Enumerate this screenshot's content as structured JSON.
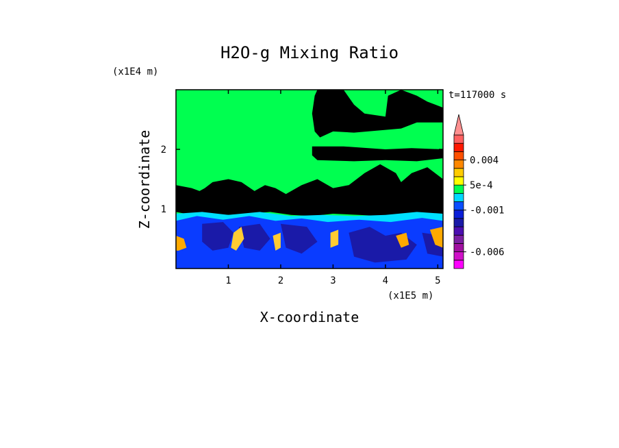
{
  "chart_data": {
    "type": "heatmap",
    "title": "H2O-g Mixing Ratio",
    "xlabel": "X-coordinate",
    "ylabel": "Z-coordinate",
    "x_unit": "(x1E5 m)",
    "y_unit": "(x1E4 m)",
    "time_label": "t=117000 s",
    "xlim": [
      0.0,
      5.1
    ],
    "ylim": [
      0.0,
      3.0
    ],
    "x_ticks": [
      1,
      2,
      3,
      4,
      5
    ],
    "y_ticks": [
      1,
      2
    ],
    "x_tick_labels": [
      "1",
      "2",
      "3",
      "4",
      "5"
    ],
    "y_tick_labels": [
      "1",
      "2"
    ],
    "grid": false,
    "colorbar": {
      "position": "right",
      "extend": "max",
      "levels_bottom_to_top": [
        {
          "value": -0.008,
          "color": "#ff00ff"
        },
        {
          "value": -0.007,
          "color": "#d010c8"
        },
        {
          "value": -0.006,
          "color": "#a010a0"
        },
        {
          "value": -0.005,
          "color": "#7b1fa2"
        },
        {
          "value": -0.004,
          "color": "#4b0fb0"
        },
        {
          "value": -0.003,
          "color": "#1a1aa8"
        },
        {
          "value": -0.002,
          "color": "#0a1ed8"
        },
        {
          "value": -0.001,
          "color": "#0a4eff"
        },
        {
          "value": 0.0,
          "color": "#00d8ff"
        },
        {
          "value": 0.0002,
          "color": "#00ff50"
        },
        {
          "value": 0.0005,
          "color": "#ffff00"
        },
        {
          "value": 0.001,
          "color": "#ffcc00"
        },
        {
          "value": 0.002,
          "color": "#ff8800"
        },
        {
          "value": 0.004,
          "color": "#ff5000"
        },
        {
          "value": 0.006,
          "color": "#ff1800"
        },
        {
          "value": 0.008,
          "color": "#ff6060"
        },
        {
          "value": 0.01,
          "color": "#ff9090"
        }
      ],
      "labeled_values": [
        {
          "text": "0.004",
          "value": 0.004
        },
        {
          "text": "5e-4",
          "value": 0.0005
        },
        {
          "text": "-0.001",
          "value": -0.001
        },
        {
          "text": "-0.006",
          "value": -0.006
        }
      ]
    },
    "field_colors": {
      "background": "#00ff50",
      "moist_yellow": "#ffff00",
      "cyan": "#00e0ff",
      "blue": "#0a3cff",
      "dark_blue": "#1a1aa8",
      "orange": "#ffaa00",
      "light_orange": "#ffcc33"
    },
    "regions": [
      {
        "kind": "yellow",
        "desc": "upper-right moist plume",
        "pts": [
          [
            2.7,
            3.0
          ],
          [
            3.2,
            3.0
          ],
          [
            3.4,
            2.75
          ],
          [
            3.6,
            2.6
          ],
          [
            4.0,
            2.55
          ],
          [
            4.05,
            2.9
          ],
          [
            4.3,
            3.0
          ],
          [
            4.6,
            2.9
          ],
          [
            4.8,
            2.8
          ],
          [
            5.1,
            2.7
          ],
          [
            5.1,
            2.45
          ],
          [
            4.6,
            2.45
          ],
          [
            4.3,
            2.35
          ],
          [
            3.4,
            2.28
          ],
          [
            3.0,
            2.3
          ],
          [
            2.75,
            2.2
          ],
          [
            2.65,
            2.3
          ],
          [
            2.6,
            2.6
          ],
          [
            2.65,
            2.9
          ]
        ]
      },
      {
        "kind": "yellow",
        "desc": "mid layer band",
        "pts": [
          [
            2.6,
            2.05
          ],
          [
            3.2,
            2.05
          ],
          [
            4.0,
            2.0
          ],
          [
            4.5,
            2.02
          ],
          [
            5.1,
            2.0
          ],
          [
            5.1,
            1.85
          ],
          [
            4.6,
            1.8
          ],
          [
            4.0,
            1.82
          ],
          [
            3.4,
            1.8
          ],
          [
            2.7,
            1.82
          ],
          [
            2.6,
            1.9
          ]
        ]
      },
      {
        "kind": "yellow",
        "desc": "lower cloud layer",
        "pts": [
          [
            0.0,
            1.4
          ],
          [
            0.3,
            1.35
          ],
          [
            0.45,
            1.3
          ],
          [
            0.55,
            1.35
          ],
          [
            0.7,
            1.45
          ],
          [
            1.0,
            1.5
          ],
          [
            1.25,
            1.45
          ],
          [
            1.5,
            1.3
          ],
          [
            1.7,
            1.4
          ],
          [
            1.9,
            1.35
          ],
          [
            2.1,
            1.25
          ],
          [
            2.4,
            1.4
          ],
          [
            2.7,
            1.5
          ],
          [
            2.8,
            1.45
          ],
          [
            3.0,
            1.35
          ],
          [
            3.3,
            1.4
          ],
          [
            3.6,
            1.6
          ],
          [
            3.9,
            1.75
          ],
          [
            4.2,
            1.6
          ],
          [
            4.3,
            1.45
          ],
          [
            4.5,
            1.6
          ],
          [
            4.8,
            1.7
          ],
          [
            5.1,
            1.5
          ],
          [
            5.1,
            0.9
          ],
          [
            4.7,
            0.92
          ],
          [
            4.3,
            0.9
          ],
          [
            3.9,
            0.88
          ],
          [
            3.5,
            0.9
          ],
          [
            3.0,
            0.92
          ],
          [
            2.6,
            0.88
          ],
          [
            2.2,
            0.9
          ],
          [
            1.8,
            0.95
          ],
          [
            1.4,
            0.92
          ],
          [
            1.0,
            0.9
          ],
          [
            0.6,
            0.92
          ],
          [
            0.3,
            0.9
          ],
          [
            0.0,
            0.95
          ]
        ]
      },
      {
        "kind": "cyan",
        "desc": "boundary layer top",
        "pts": [
          [
            0.0,
            0.92
          ],
          [
            0.5,
            0.95
          ],
          [
            1.0,
            0.9
          ],
          [
            1.6,
            0.95
          ],
          [
            2.2,
            0.88
          ],
          [
            2.8,
            0.9
          ],
          [
            3.4,
            0.88
          ],
          [
            4.0,
            0.9
          ],
          [
            4.6,
            0.95
          ],
          [
            5.1,
            0.92
          ],
          [
            5.1,
            0.6
          ],
          [
            0.0,
            0.6
          ]
        ]
      },
      {
        "kind": "blue",
        "desc": "boundary layer",
        "pts": [
          [
            0.0,
            0.8
          ],
          [
            0.4,
            0.88
          ],
          [
            0.9,
            0.82
          ],
          [
            1.4,
            0.88
          ],
          [
            1.9,
            0.8
          ],
          [
            2.4,
            0.84
          ],
          [
            2.9,
            0.78
          ],
          [
            3.5,
            0.82
          ],
          [
            4.1,
            0.78
          ],
          [
            4.7,
            0.85
          ],
          [
            5.1,
            0.8
          ],
          [
            5.1,
            0.0
          ],
          [
            0.0,
            0.0
          ]
        ]
      },
      {
        "kind": "dark_blue",
        "desc": "dark cell 1",
        "pts": [
          [
            0.5,
            0.75
          ],
          [
            0.9,
            0.78
          ],
          [
            1.1,
            0.6
          ],
          [
            1.0,
            0.35
          ],
          [
            0.7,
            0.3
          ],
          [
            0.5,
            0.45
          ]
        ]
      },
      {
        "kind": "dark_blue",
        "desc": "dark cell 2",
        "pts": [
          [
            1.2,
            0.7
          ],
          [
            1.6,
            0.75
          ],
          [
            1.8,
            0.5
          ],
          [
            1.6,
            0.3
          ],
          [
            1.3,
            0.35
          ]
        ]
      },
      {
        "kind": "dark_blue",
        "desc": "dark cell 3",
        "pts": [
          [
            2.0,
            0.75
          ],
          [
            2.5,
            0.7
          ],
          [
            2.7,
            0.45
          ],
          [
            2.4,
            0.25
          ],
          [
            2.1,
            0.35
          ]
        ]
      },
      {
        "kind": "dark_blue",
        "desc": "dark cell 4",
        "pts": [
          [
            3.3,
            0.6
          ],
          [
            3.7,
            0.7
          ],
          [
            4.0,
            0.55
          ],
          [
            4.3,
            0.6
          ],
          [
            4.6,
            0.4
          ],
          [
            4.4,
            0.15
          ],
          [
            3.8,
            0.1
          ],
          [
            3.4,
            0.2
          ]
        ]
      },
      {
        "kind": "dark_blue",
        "desc": "dark cell 5",
        "pts": [
          [
            4.7,
            0.6
          ],
          [
            5.1,
            0.55
          ],
          [
            5.1,
            0.2
          ],
          [
            4.8,
            0.25
          ]
        ]
      },
      {
        "kind": "orange",
        "desc": "left edge anomaly",
        "pts": [
          [
            0.0,
            0.55
          ],
          [
            0.15,
            0.5
          ],
          [
            0.2,
            0.35
          ],
          [
            0.05,
            0.3
          ],
          [
            0.0,
            0.3
          ]
        ]
      },
      {
        "kind": "orange",
        "desc": "right edge anomaly",
        "pts": [
          [
            4.85,
            0.65
          ],
          [
            5.1,
            0.7
          ],
          [
            5.1,
            0.35
          ],
          [
            4.95,
            0.4
          ]
        ]
      },
      {
        "kind": "orange",
        "desc": "anomaly near x=4.3",
        "pts": [
          [
            4.2,
            0.55
          ],
          [
            4.4,
            0.6
          ],
          [
            4.45,
            0.4
          ],
          [
            4.3,
            0.35
          ]
        ]
      },
      {
        "kind": "light_orange",
        "desc": "updraft streak 1",
        "pts": [
          [
            1.1,
            0.6
          ],
          [
            1.25,
            0.7
          ],
          [
            1.3,
            0.5
          ],
          [
            1.15,
            0.3
          ],
          [
            1.05,
            0.35
          ]
        ]
      },
      {
        "kind": "light_orange",
        "desc": "updraft streak 2",
        "pts": [
          [
            1.85,
            0.55
          ],
          [
            2.0,
            0.6
          ],
          [
            2.0,
            0.35
          ],
          [
            1.9,
            0.3
          ]
        ]
      },
      {
        "kind": "light_orange",
        "desc": "updraft streak 3",
        "pts": [
          [
            2.95,
            0.6
          ],
          [
            3.1,
            0.65
          ],
          [
            3.1,
            0.4
          ],
          [
            2.95,
            0.35
          ]
        ]
      }
    ]
  }
}
